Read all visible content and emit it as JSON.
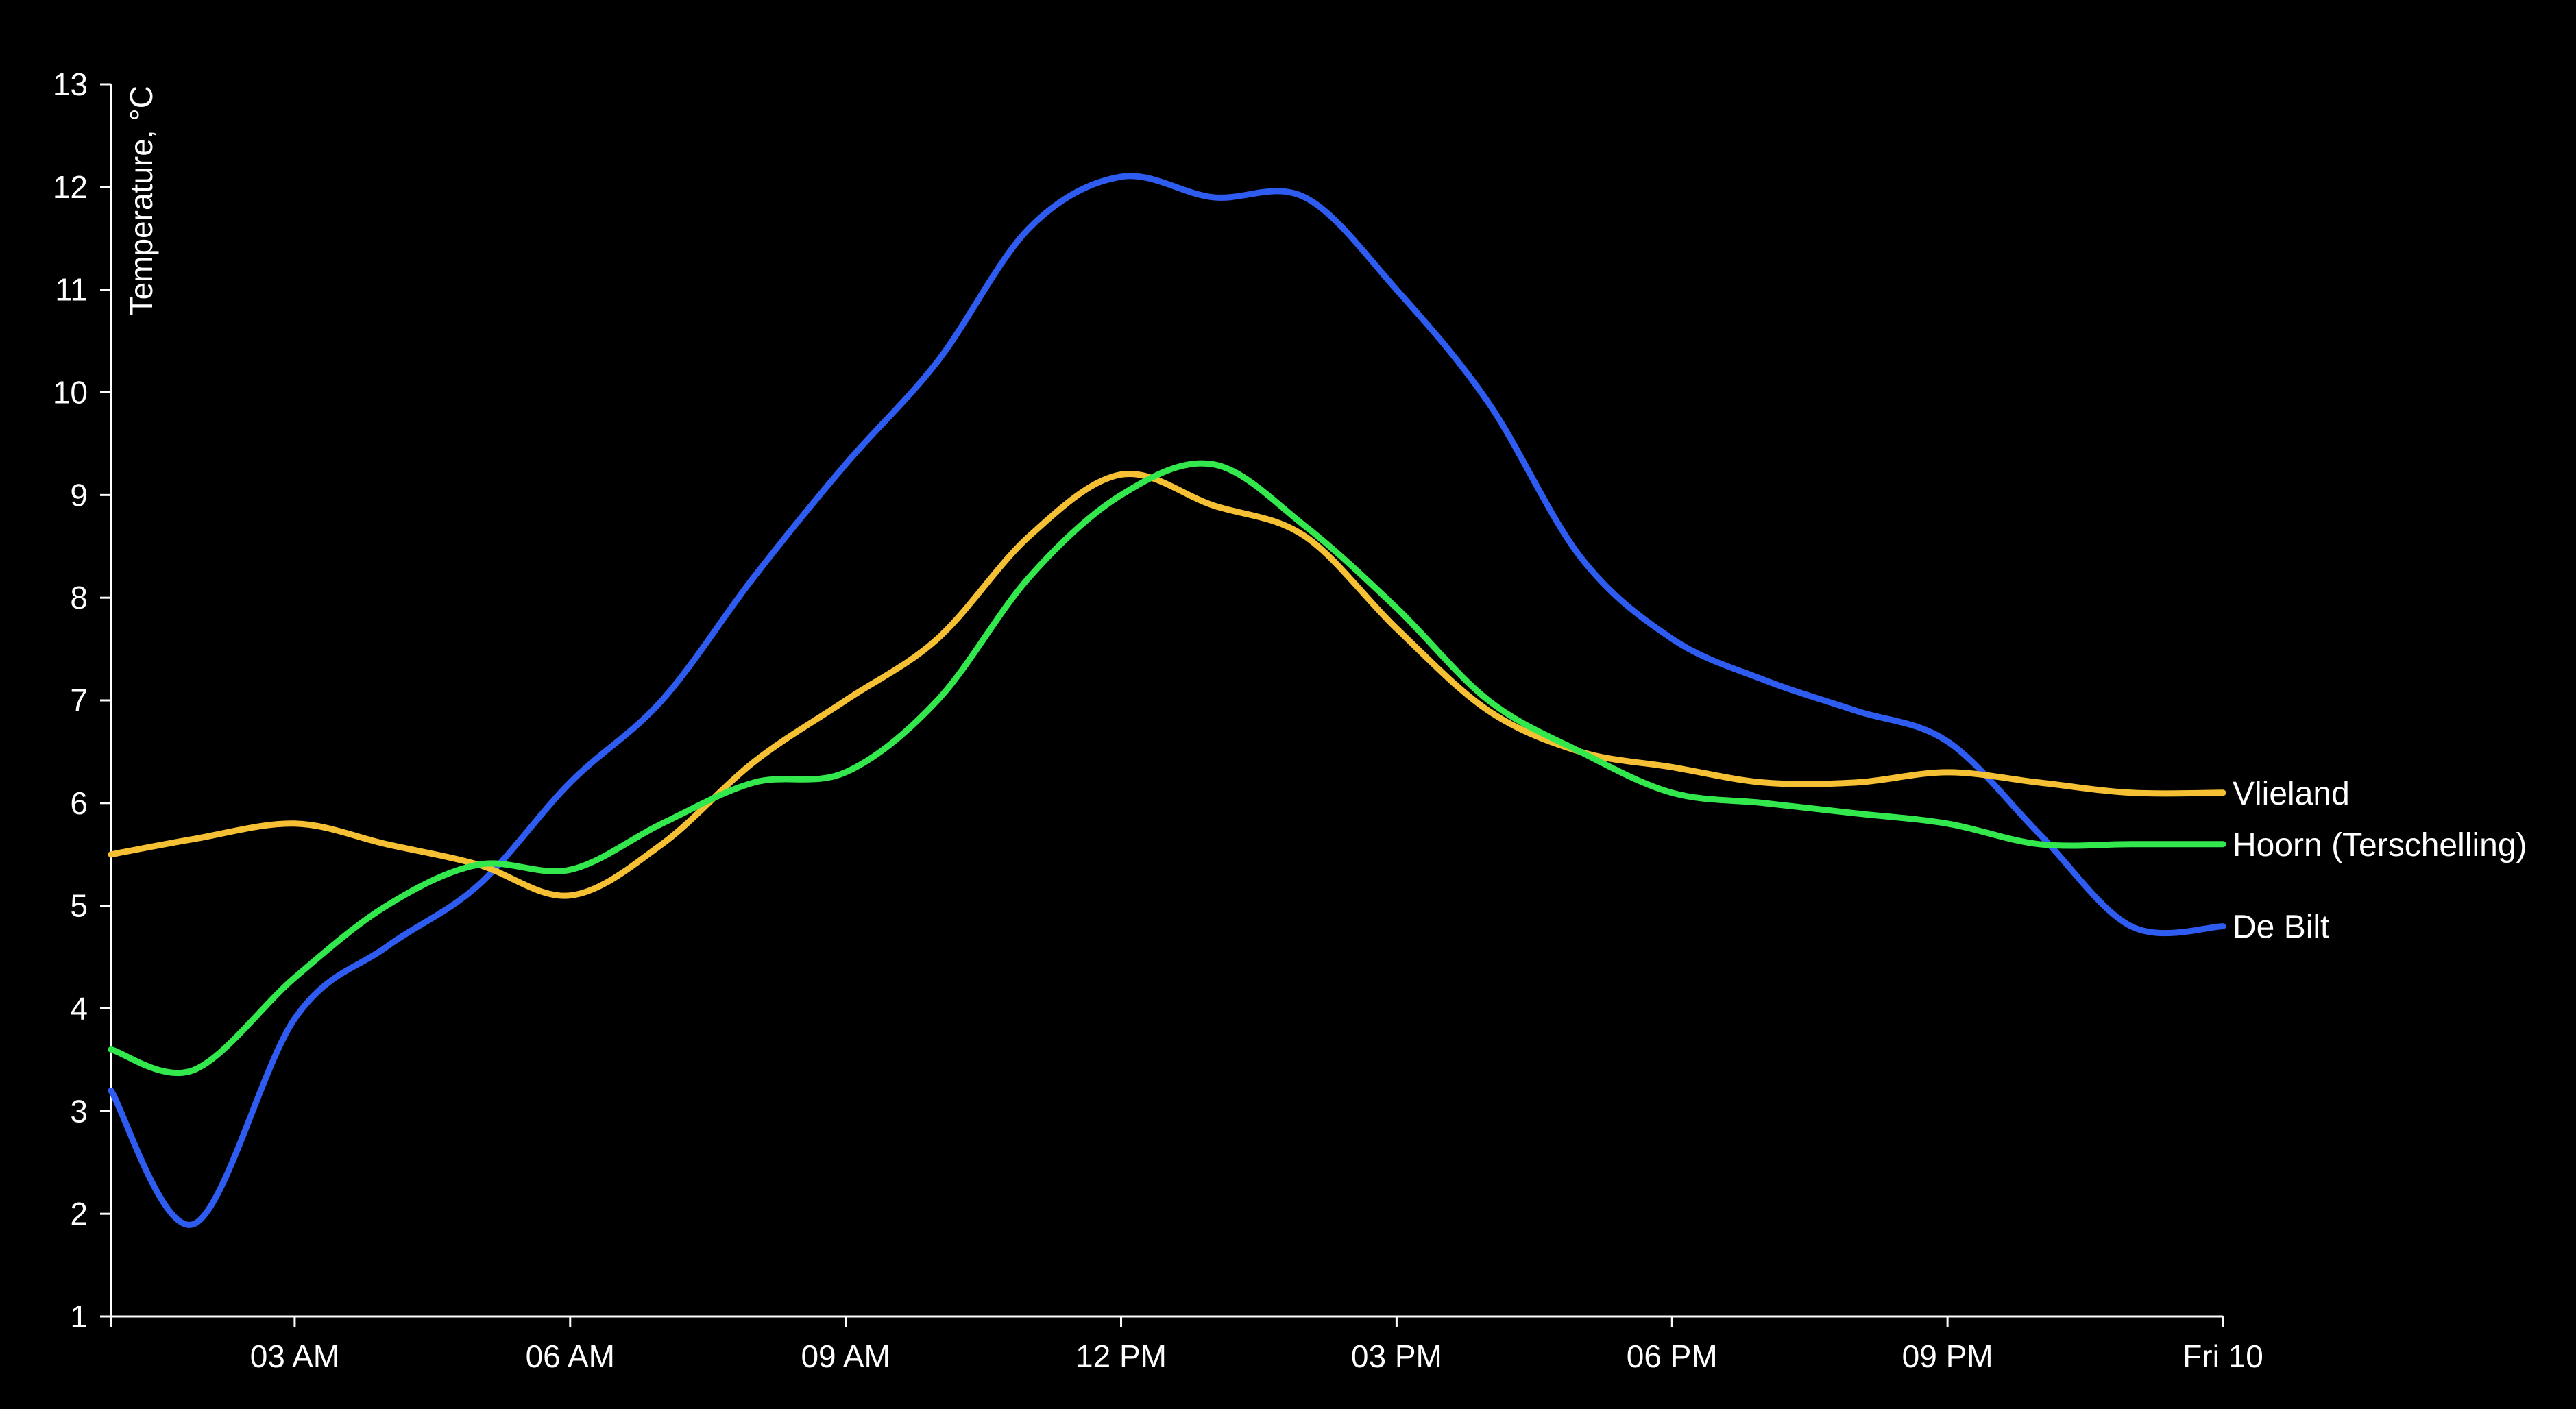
{
  "chart_data": {
    "type": "line",
    "title": "",
    "xlabel": "",
    "ylabel": "Temperature, °C",
    "ylim": [
      1,
      13
    ],
    "yticks": [
      "1",
      "2",
      "3",
      "4",
      "5",
      "6",
      "7",
      "8",
      "9",
      "10",
      "11",
      "12",
      "13"
    ],
    "xlim": [
      0,
      23
    ],
    "xticks": [
      {
        "x": 2,
        "label": "03 AM"
      },
      {
        "x": 5,
        "label": "06 AM"
      },
      {
        "x": 8,
        "label": "09 AM"
      },
      {
        "x": 11,
        "label": "12 PM"
      },
      {
        "x": 14,
        "label": "03 PM"
      },
      {
        "x": 17,
        "label": "06 PM"
      },
      {
        "x": 20,
        "label": "09 PM"
      },
      {
        "x": 23,
        "label": "Fri 10"
      }
    ],
    "grid": false,
    "legend": "inline labels at line ends",
    "x": [
      0,
      0.9,
      2,
      3,
      4,
      5,
      6,
      7,
      8,
      9,
      10,
      11,
      12,
      13,
      14,
      15,
      16,
      17,
      18,
      19,
      20,
      21,
      22,
      23
    ],
    "series": [
      {
        "name": "De Bilt",
        "color": "#2f5cf0",
        "values": [
          3.2,
          1.9,
          3.9,
          4.6,
          5.2,
          6.2,
          7.0,
          8.2,
          9.3,
          10.3,
          11.6,
          12.1,
          11.9,
          11.9,
          11.0,
          9.9,
          8.4,
          7.6,
          7.2,
          6.9,
          6.6,
          5.7,
          4.8,
          4.8
        ]
      },
      {
        "name": "Vlieland",
        "color": "#f5c033",
        "values": [
          5.5,
          5.65,
          5.8,
          5.6,
          5.4,
          5.1,
          5.6,
          6.4,
          7.0,
          7.6,
          8.6,
          9.2,
          8.9,
          8.6,
          7.7,
          6.9,
          6.5,
          6.35,
          6.2,
          6.2,
          6.3,
          6.2,
          6.1,
          6.1
        ]
      },
      {
        "name": "Hoorn (Terschelling)",
        "color": "#33e84d",
        "values": [
          3.6,
          3.4,
          4.3,
          5.0,
          5.4,
          5.35,
          5.8,
          6.2,
          6.3,
          7.0,
          8.2,
          9.0,
          9.3,
          8.7,
          7.9,
          7.0,
          6.5,
          6.1,
          6.0,
          5.9,
          5.8,
          5.6,
          5.6,
          5.6
        ]
      }
    ]
  }
}
